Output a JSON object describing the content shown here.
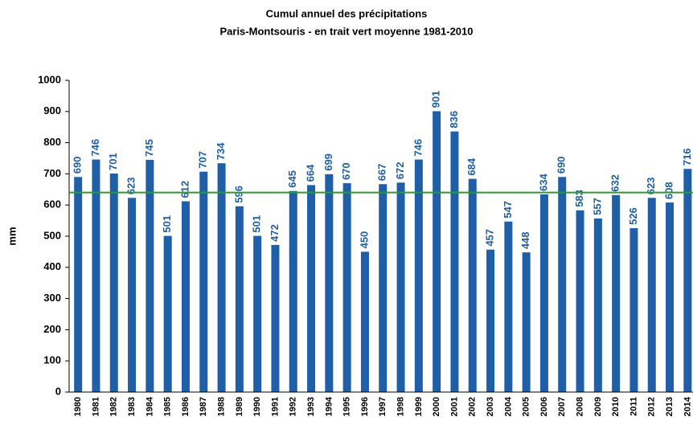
{
  "chart_data": {
    "type": "bar",
    "title": "Cumul annuel des précipitations",
    "subtitle": "Paris-Montsouris - en trait vert moyenne 1981-2010",
    "y_label": "mm",
    "categories": [
      "1980",
      "1981",
      "1982",
      "1983",
      "1984",
      "1985",
      "1986",
      "1987",
      "1988",
      "1989",
      "1990",
      "1991",
      "1992",
      "1993",
      "1994",
      "1995",
      "1996",
      "1997",
      "1998",
      "1999",
      "2000",
      "2001",
      "2002",
      "2003",
      "2004",
      "2005",
      "2006",
      "2007",
      "2008",
      "2009",
      "2010",
      "2011",
      "2012",
      "2013",
      "2014"
    ],
    "values": [
      690,
      746,
      701,
      623,
      745,
      501,
      612,
      707,
      734,
      596,
      501,
      472,
      645,
      664,
      699,
      670,
      450,
      667,
      672,
      746,
      901,
      836,
      684,
      457,
      547,
      448,
      634,
      690,
      583,
      557,
      632,
      526,
      623,
      608,
      716
    ],
    "color": "#1f5fa8",
    "ylim": [
      0,
      1000
    ],
    "yticks": [
      0,
      100,
      200,
      300,
      400,
      500,
      600,
      700,
      800,
      900,
      1000
    ],
    "reference_line": {
      "value": 640,
      "color": "#2e9a2e"
    }
  }
}
